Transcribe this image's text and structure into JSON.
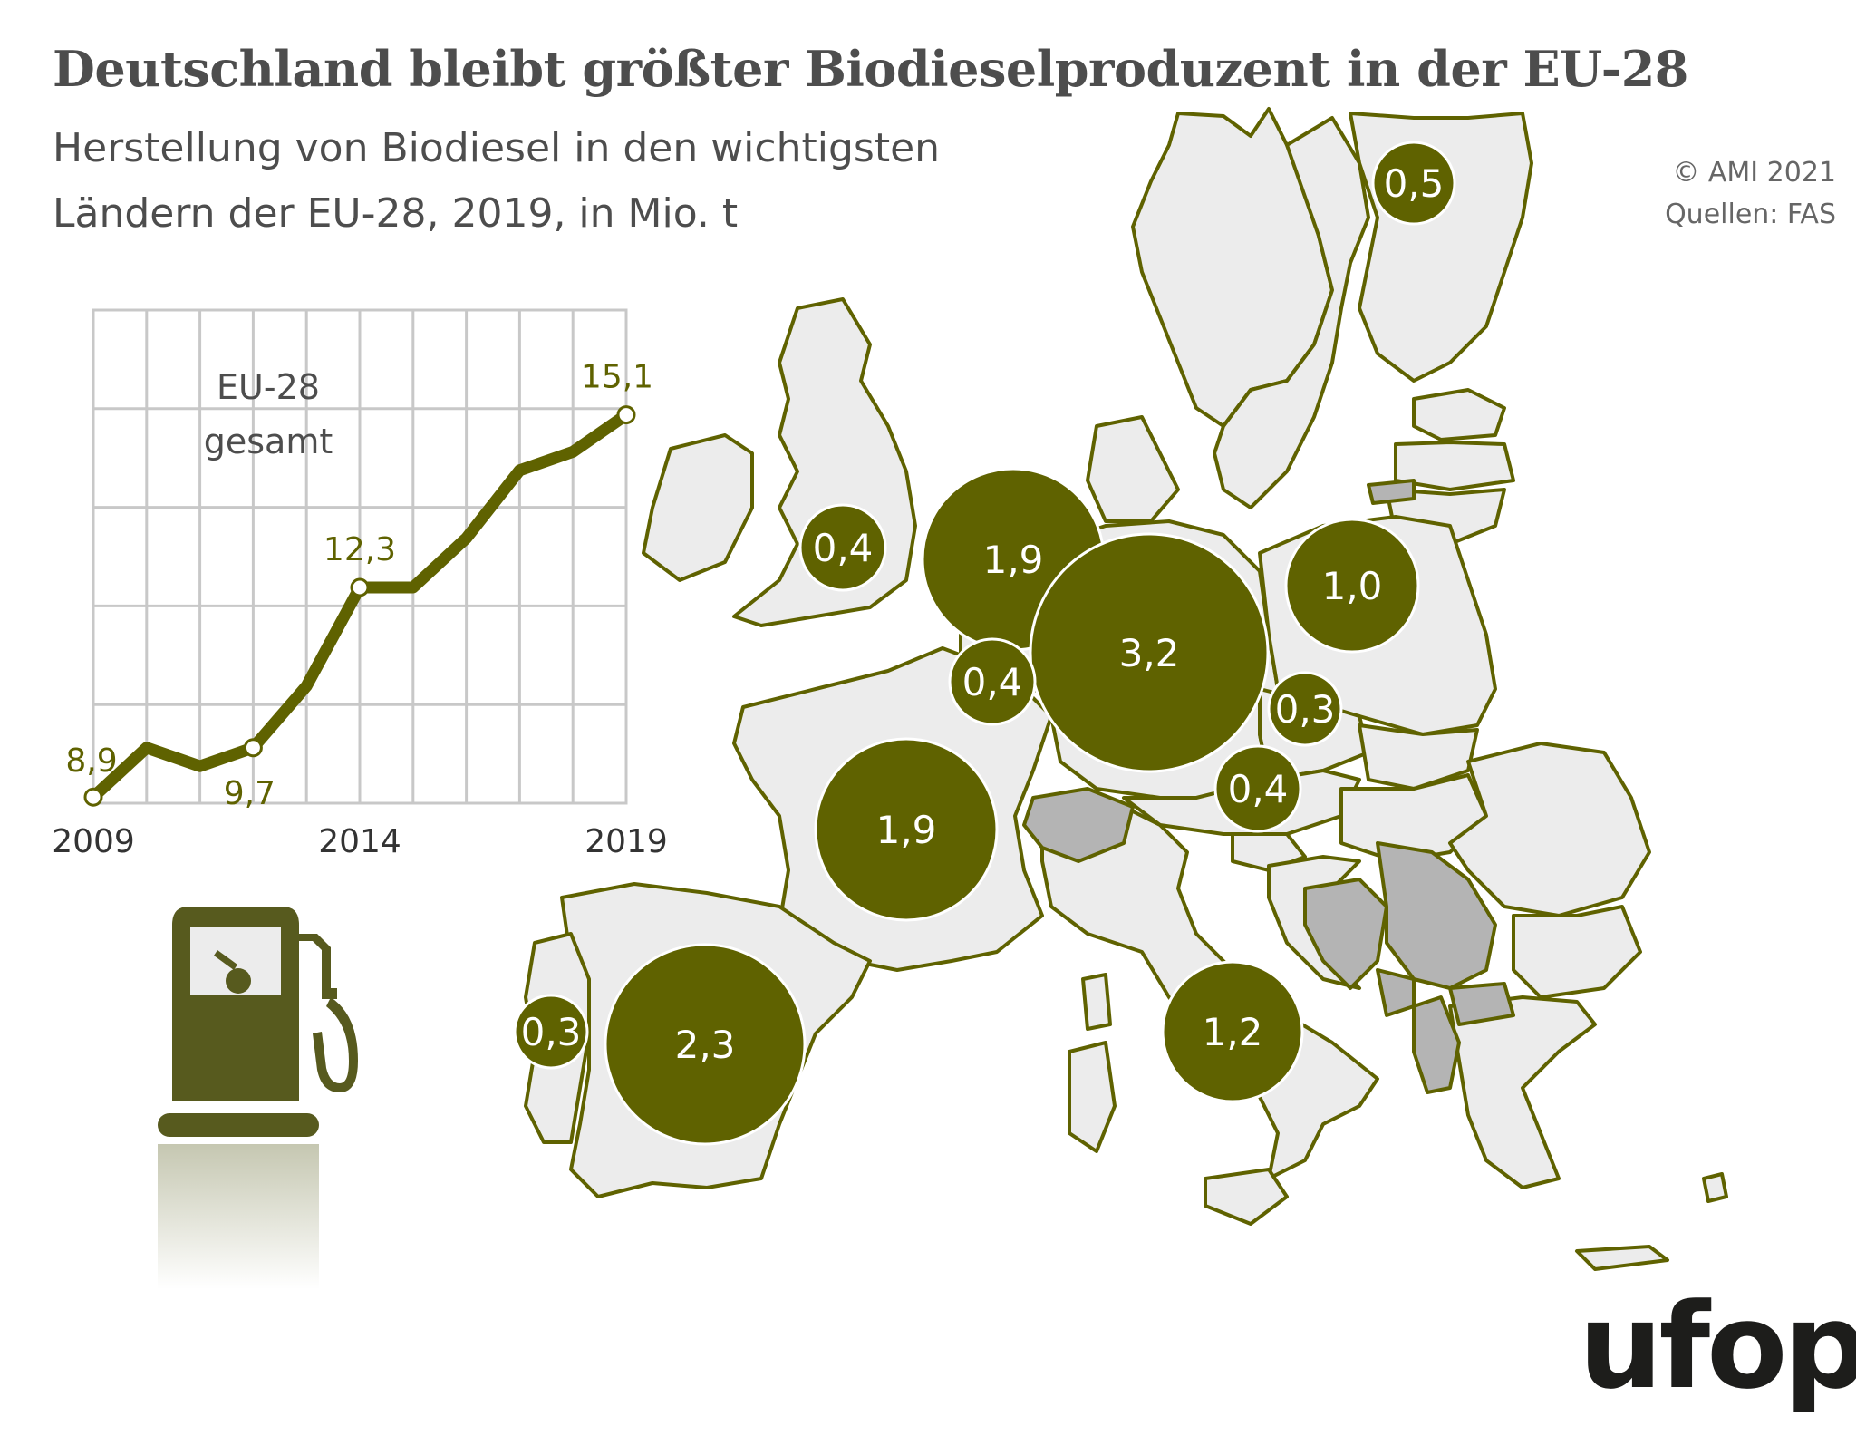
{
  "header": {
    "title": "Deutschland bleibt größter Biodieselproduzent in der EU-28",
    "subtitle_line1": "Herstellung von Biodiesel in den wichtigsten",
    "subtitle_line2": "Ländern der EU-28, 2019, in Mio. t",
    "copyright": "© AMI 2021",
    "source": "Quellen: FAS"
  },
  "map": {
    "colors": {
      "eu_fill": "#ececec",
      "non_eu_fill": "#b4b4b4",
      "border": "#5f6200",
      "bubble": "#5f6200"
    },
    "bubbles": [
      {
        "country": "Finland",
        "value": "0,5"
      },
      {
        "country": "Poland",
        "value": "1,0"
      },
      {
        "country": "United Kingdom",
        "value": "0,4"
      },
      {
        "country": "Netherlands",
        "value": "1,9"
      },
      {
        "country": "Germany",
        "value": "3,2"
      },
      {
        "country": "Belgium",
        "value": "0,4"
      },
      {
        "country": "Czech Republic",
        "value": "0,3"
      },
      {
        "country": "Austria",
        "value": "0,4"
      },
      {
        "country": "France",
        "value": "1,9"
      },
      {
        "country": "Portugal",
        "value": "0,3"
      },
      {
        "country": "Spain",
        "value": "2,3"
      },
      {
        "country": "Italy",
        "value": "1,2"
      }
    ]
  },
  "chart_data": {
    "type": "line",
    "title": "EU-28 gesamt",
    "label_line1": "EU-28",
    "label_line2": "gesamt",
    "x": [
      2009,
      2010,
      2011,
      2012,
      2013,
      2014,
      2015,
      2016,
      2017,
      2018,
      2019
    ],
    "values": [
      8.9,
      9.7,
      9.4,
      9.7,
      10.7,
      12.3,
      12.3,
      13.1,
      14.2,
      14.5,
      15.1
    ],
    "xlim": [
      2009,
      2019
    ],
    "ylim": [
      8.8,
      16.8
    ],
    "x_ticks": [
      "2009",
      "2014",
      "2019"
    ],
    "labeled_points": [
      {
        "x": 2009,
        "label": "8,9"
      },
      {
        "x": 2012,
        "label": "9,7"
      },
      {
        "x": 2014,
        "label": "12,3"
      },
      {
        "x": 2019,
        "label": "15,1"
      }
    ],
    "grid": true,
    "line_color": "#5f6200"
  },
  "logo": {
    "text": "ufop"
  }
}
